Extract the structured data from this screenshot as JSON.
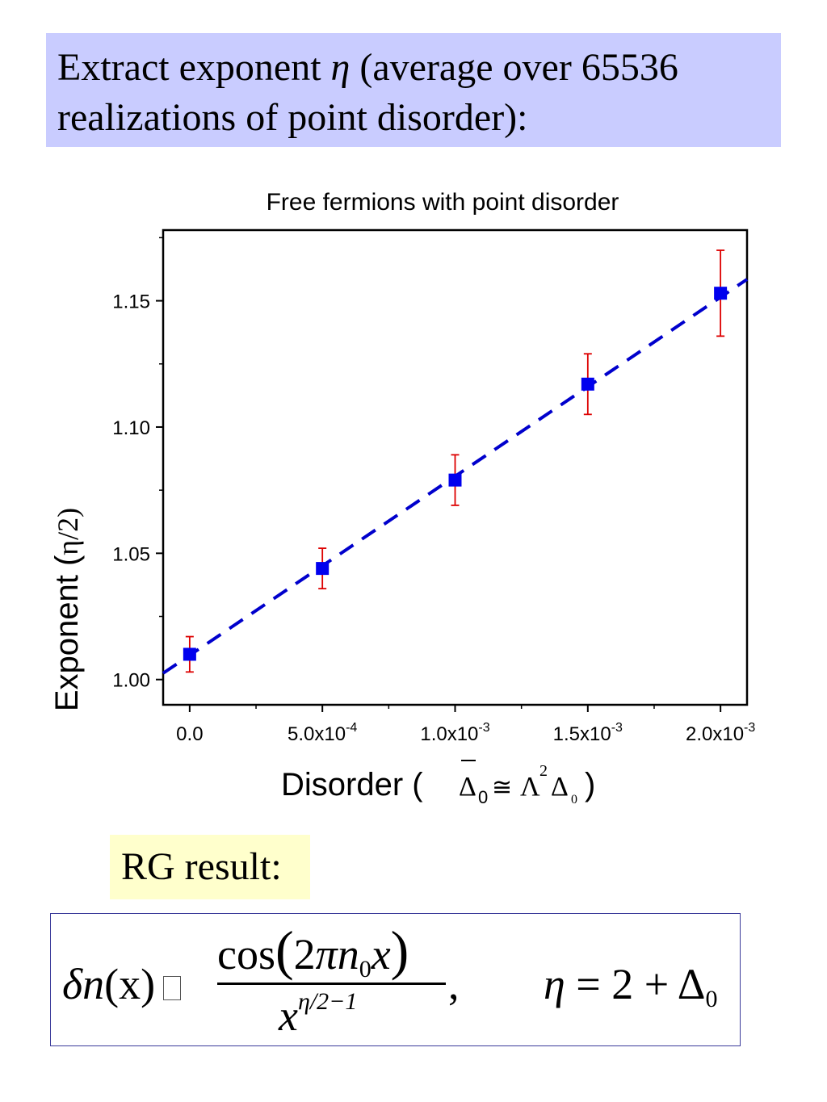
{
  "header": {
    "line1_before_eta": "Extract exponent ",
    "eta_symbol": "η",
    "line1_after_eta": " (average over 65536",
    "line2": "realizations of point disorder):"
  },
  "chart_data": {
    "type": "scatter",
    "title": "Free fermions with point disorder",
    "ylabel_main": "Exponent (",
    "ylabel_eta": "η",
    "ylabel_end": "/2)",
    "xlabel_text": "Disorder ( ",
    "xlabel_delta_bar": "Δ",
    "xlabel_sub0": "0",
    "xlabel_approx": "≅",
    "xlabel_lambda": "Λ",
    "xlabel_sup2": "2",
    "xlabel_delta": "Δ",
    "xlabel_sub0b": "0",
    "xlabel_close": ")",
    "xlim": [
      -0.0001,
      0.0021
    ],
    "ylim": [
      0.99,
      1.178
    ],
    "x_ticks": [
      {
        "value": 0,
        "mantissa": "0.0",
        "exp": ""
      },
      {
        "value": 0.0005,
        "mantissa": "5.0x10",
        "exp": "-4"
      },
      {
        "value": 0.001,
        "mantissa": "1.0x10",
        "exp": "-3"
      },
      {
        "value": 0.0015,
        "mantissa": "1.5x10",
        "exp": "-3"
      },
      {
        "value": 0.002,
        "mantissa": "2.0x10",
        "exp": "-3"
      }
    ],
    "y_ticks": [
      {
        "value": 1.0,
        "label": "1.00"
      },
      {
        "value": 1.05,
        "label": "1.05"
      },
      {
        "value": 1.1,
        "label": "1.10"
      },
      {
        "value": 1.15,
        "label": "1.15"
      }
    ],
    "points": [
      {
        "x": 0.0,
        "y": 1.01,
        "err": 0.007
      },
      {
        "x": 0.0005,
        "y": 1.044,
        "err": 0.008
      },
      {
        "x": 0.001,
        "y": 1.079,
        "err": 0.01
      },
      {
        "x": 0.0015,
        "y": 1.117,
        "err": 0.012
      },
      {
        "x": 0.002,
        "y": 1.153,
        "err": 0.017
      }
    ],
    "fit_line": {
      "x": [
        -0.0001,
        0.0021
      ],
      "y": [
        1.0025,
        1.1585
      ],
      "style": "dashed"
    },
    "colors": {
      "marker": "#0000ee",
      "errorbar": "#dd0000",
      "fit": "#0000cc",
      "axis": "#000000"
    },
    "grid": false
  },
  "rg_label": "RG result:",
  "formula": {
    "delta": "δ",
    "n": "n",
    "lhs_args": "(x)",
    "num_cos": "cos",
    "num_2": "2",
    "num_pi": "π",
    "num_n": "n",
    "num_sub0": "0",
    "num_x": "x",
    "den_x": "x",
    "den_exp": "η/2−1",
    "comma": ",",
    "eta": "η",
    "eq": " = 2 + Δ",
    "eq_sub": "0"
  }
}
